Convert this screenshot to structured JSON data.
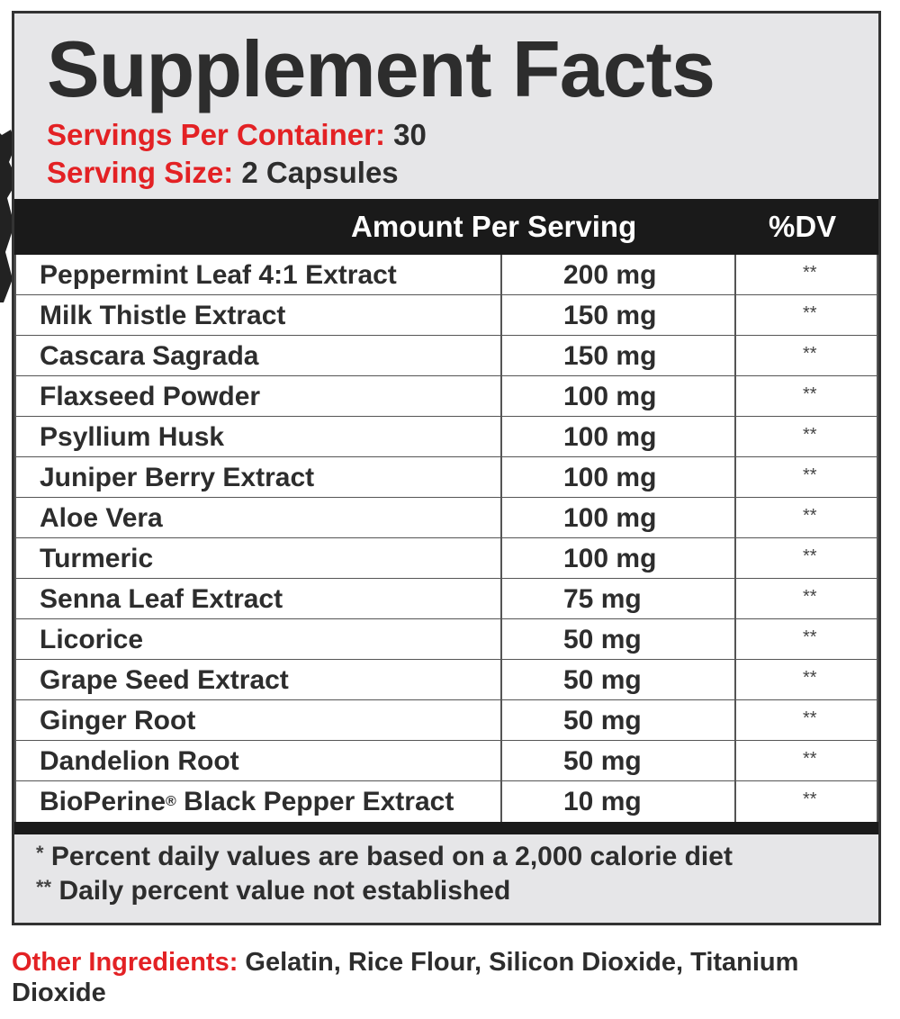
{
  "title": "Supplement Facts",
  "servings_per_container": {
    "label": "Servings Per Container:",
    "value": "30"
  },
  "serving_size": {
    "label": "Serving Size:",
    "value": "2 Capsules"
  },
  "header": {
    "amount": "Amount Per Serving",
    "dv": "%DV"
  },
  "ingredients": [
    {
      "name": "Peppermint Leaf 4:1 Extract",
      "amount": "200 mg",
      "dv": "**"
    },
    {
      "name": "Milk Thistle Extract",
      "amount": "150 mg",
      "dv": "**"
    },
    {
      "name": "Cascara Sagrada",
      "amount": "150 mg",
      "dv": "**"
    },
    {
      "name": "Flaxseed Powder",
      "amount": "100 mg",
      "dv": "**"
    },
    {
      "name": "Psyllium Husk",
      "amount": "100 mg",
      "dv": "**"
    },
    {
      "name": "Juniper Berry Extract",
      "amount": "100 mg",
      "dv": "**"
    },
    {
      "name": "Aloe Vera",
      "amount": "100 mg",
      "dv": "**"
    },
    {
      "name": "Turmeric",
      "amount": "100 mg",
      "dv": "**"
    },
    {
      "name": "Senna Leaf Extract",
      "amount": "75 mg",
      "dv": "**"
    },
    {
      "name": "Licorice",
      "amount": "50 mg",
      "dv": "**"
    },
    {
      "name": "Grape Seed Extract",
      "amount": "50 mg",
      "dv": "**"
    },
    {
      "name": "Ginger Root",
      "amount": "50 mg",
      "dv": "**"
    },
    {
      "name": "Dandelion Root",
      "amount": "50 mg",
      "dv": "**"
    },
    {
      "name": "BioPerine",
      "name_reg": "®",
      "name_rest": " Black Pepper Extract",
      "amount": "10 mg",
      "dv": "**"
    }
  ],
  "notes": {
    "n1_mark": "*",
    "n1_text": " Percent daily values are based on a 2,000 calorie diet",
    "n2_mark": "**",
    "n2_text": " Daily percent value not established"
  },
  "other_ingredients": {
    "label": "Other Ingredients:",
    "value": " Gelatin, Rice Flour, Silicon Dioxide, Titanium Dioxide"
  },
  "colors": {
    "accent_red": "#e32124",
    "panel_gray": "#e6e6e8",
    "bar_black": "#1a1a1a"
  }
}
